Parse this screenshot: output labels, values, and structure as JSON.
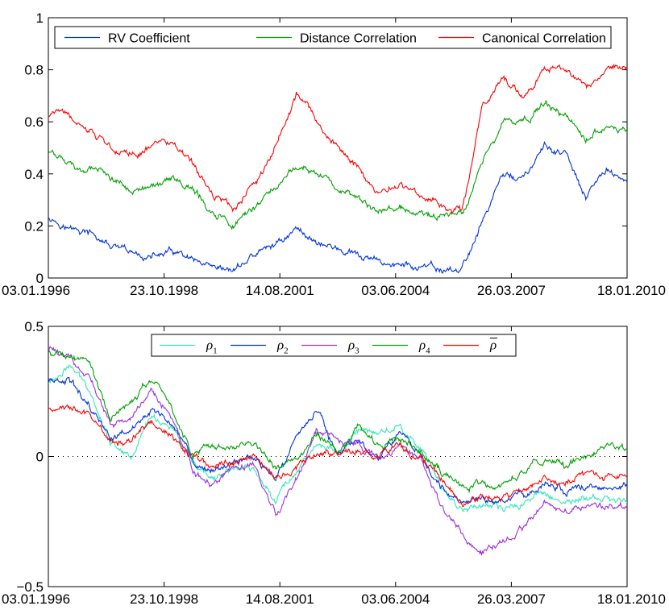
{
  "chart_data": [
    {
      "type": "line",
      "title": "",
      "xlabel": "",
      "ylabel": "",
      "ylim": [
        0,
        1
      ],
      "yticks": [
        0,
        0.2,
        0.4,
        0.6,
        0.8,
        1
      ],
      "ytick_labels": [
        "0",
        "0.2",
        "0.4",
        "0.6",
        "0.8",
        "1"
      ],
      "xticks": [
        "03.01.1996",
        "23.10.1998",
        "14.08.2001",
        "03.06.2004",
        "26.03.2007",
        "18.01.2010"
      ],
      "legend_position": "top",
      "x": [
        0.0,
        0.5,
        1.0,
        1.5,
        2.0,
        2.5,
        3.0,
        3.5,
        4.0,
        4.5,
        5.0,
        5.5,
        6.0,
        6.5,
        7.0,
        7.5,
        8.0,
        8.5,
        9.0,
        9.5,
        10.0,
        10.5,
        11.0,
        11.5,
        12.0,
        12.5,
        13.0,
        13.5,
        14.0
      ],
      "series": [
        {
          "name": "RV Coefficient",
          "color": "#0033dd",
          "values": [
            0.24,
            0.19,
            0.17,
            0.12,
            0.09,
            0.08,
            0.1,
            0.06,
            0.02,
            0.03,
            0.09,
            0.13,
            0.19,
            0.14,
            0.11,
            0.08,
            0.06,
            0.05,
            0.04,
            0.03,
            0.03,
            0.22,
            0.4,
            0.38,
            0.5,
            0.48,
            0.3,
            0.42,
            0.37
          ]
        },
        {
          "name": "Distance Correlation",
          "color": "#00a000",
          "values": [
            0.49,
            0.43,
            0.42,
            0.38,
            0.35,
            0.34,
            0.38,
            0.34,
            0.25,
            0.2,
            0.28,
            0.35,
            0.44,
            0.4,
            0.36,
            0.3,
            0.25,
            0.27,
            0.25,
            0.24,
            0.24,
            0.45,
            0.6,
            0.6,
            0.67,
            0.64,
            0.53,
            0.6,
            0.57
          ]
        },
        {
          "name": "Canonical Correlation",
          "color": "#ff0000",
          "values": [
            0.62,
            0.62,
            0.56,
            0.51,
            0.47,
            0.5,
            0.52,
            0.43,
            0.32,
            0.27,
            0.36,
            0.5,
            0.71,
            0.6,
            0.5,
            0.42,
            0.32,
            0.36,
            0.31,
            0.28,
            0.26,
            0.65,
            0.76,
            0.7,
            0.8,
            0.8,
            0.72,
            0.81,
            0.81
          ]
        }
      ]
    },
    {
      "type": "line",
      "title": "",
      "xlabel": "",
      "ylabel": "",
      "ylim": [
        -0.5,
        0.5
      ],
      "yticks": [
        -0.5,
        0,
        0.5
      ],
      "ytick_labels": [
        "−0.5",
        "0",
        "0.5"
      ],
      "xticks": [
        "03.01.1996",
        "23.10.1998",
        "14.08.2001",
        "03.06.2004",
        "26.03.2007",
        "18.01.2010"
      ],
      "legend_position": "top",
      "reference_line": 0,
      "x": [
        0.0,
        0.5,
        1.0,
        1.5,
        2.0,
        2.5,
        3.0,
        3.5,
        4.0,
        4.5,
        5.0,
        5.5,
        6.0,
        6.5,
        7.0,
        7.5,
        8.0,
        8.5,
        9.0,
        9.5,
        10.0,
        10.5,
        11.0,
        11.5,
        12.0,
        12.5,
        13.0,
        13.5,
        14.0
      ],
      "series": [
        {
          "name": "ρ1",
          "symbol": "ρ",
          "subscript": "1",
          "color": "#33e8b5",
          "values": [
            0.28,
            0.35,
            0.26,
            0.06,
            0.0,
            0.16,
            0.11,
            -0.04,
            -0.09,
            -0.04,
            -0.06,
            -0.16,
            -0.05,
            0.05,
            0.01,
            0.1,
            0.09,
            0.12,
            0.03,
            -0.12,
            -0.2,
            -0.18,
            -0.21,
            -0.18,
            -0.13,
            -0.18,
            -0.16,
            -0.17,
            -0.17
          ]
        },
        {
          "name": "ρ2",
          "symbol": "ρ",
          "subscript": "2",
          "color": "#0033dd",
          "values": [
            0.3,
            0.3,
            0.18,
            0.06,
            0.1,
            0.18,
            0.12,
            -0.02,
            -0.06,
            -0.03,
            0.0,
            -0.1,
            0.08,
            0.18,
            0.0,
            0.06,
            -0.02,
            0.1,
            0.0,
            -0.12,
            -0.18,
            -0.16,
            -0.17,
            -0.14,
            -0.1,
            -0.13,
            -0.12,
            -0.11,
            -0.11
          ]
        },
        {
          "name": "ρ3",
          "symbol": "ρ",
          "subscript": "3",
          "color": "#9b30e0",
          "values": [
            0.42,
            0.38,
            0.3,
            0.12,
            0.14,
            0.26,
            0.15,
            -0.05,
            -0.12,
            -0.04,
            -0.03,
            -0.22,
            -0.1,
            0.1,
            0.04,
            0.06,
            -0.02,
            0.05,
            -0.02,
            -0.18,
            -0.3,
            -0.38,
            -0.32,
            -0.26,
            -0.18,
            -0.22,
            -0.18,
            -0.19,
            -0.2
          ]
        },
        {
          "name": "ρ4",
          "symbol": "ρ",
          "subscript": "4",
          "color": "#00a000",
          "values": [
            0.4,
            0.37,
            0.36,
            0.15,
            0.2,
            0.3,
            0.17,
            0.0,
            0.04,
            0.04,
            0.06,
            -0.04,
            0.0,
            0.08,
            0.02,
            0.12,
            0.04,
            0.08,
            0.02,
            -0.06,
            -0.12,
            -0.1,
            -0.12,
            -0.06,
            0.0,
            -0.04,
            0.0,
            0.05,
            0.02
          ]
        },
        {
          "name": "ρ̄",
          "symbol": "ρ",
          "overbar": true,
          "color": "#ff0000",
          "values": [
            0.19,
            0.18,
            0.17,
            0.07,
            0.06,
            0.13,
            0.08,
            0.0,
            -0.04,
            -0.02,
            0.0,
            -0.09,
            -0.04,
            0.02,
            0.0,
            0.03,
            0.0,
            0.04,
            0.0,
            -0.08,
            -0.18,
            -0.15,
            -0.16,
            -0.12,
            -0.08,
            -0.1,
            -0.07,
            -0.08,
            -0.08
          ]
        }
      ]
    }
  ]
}
